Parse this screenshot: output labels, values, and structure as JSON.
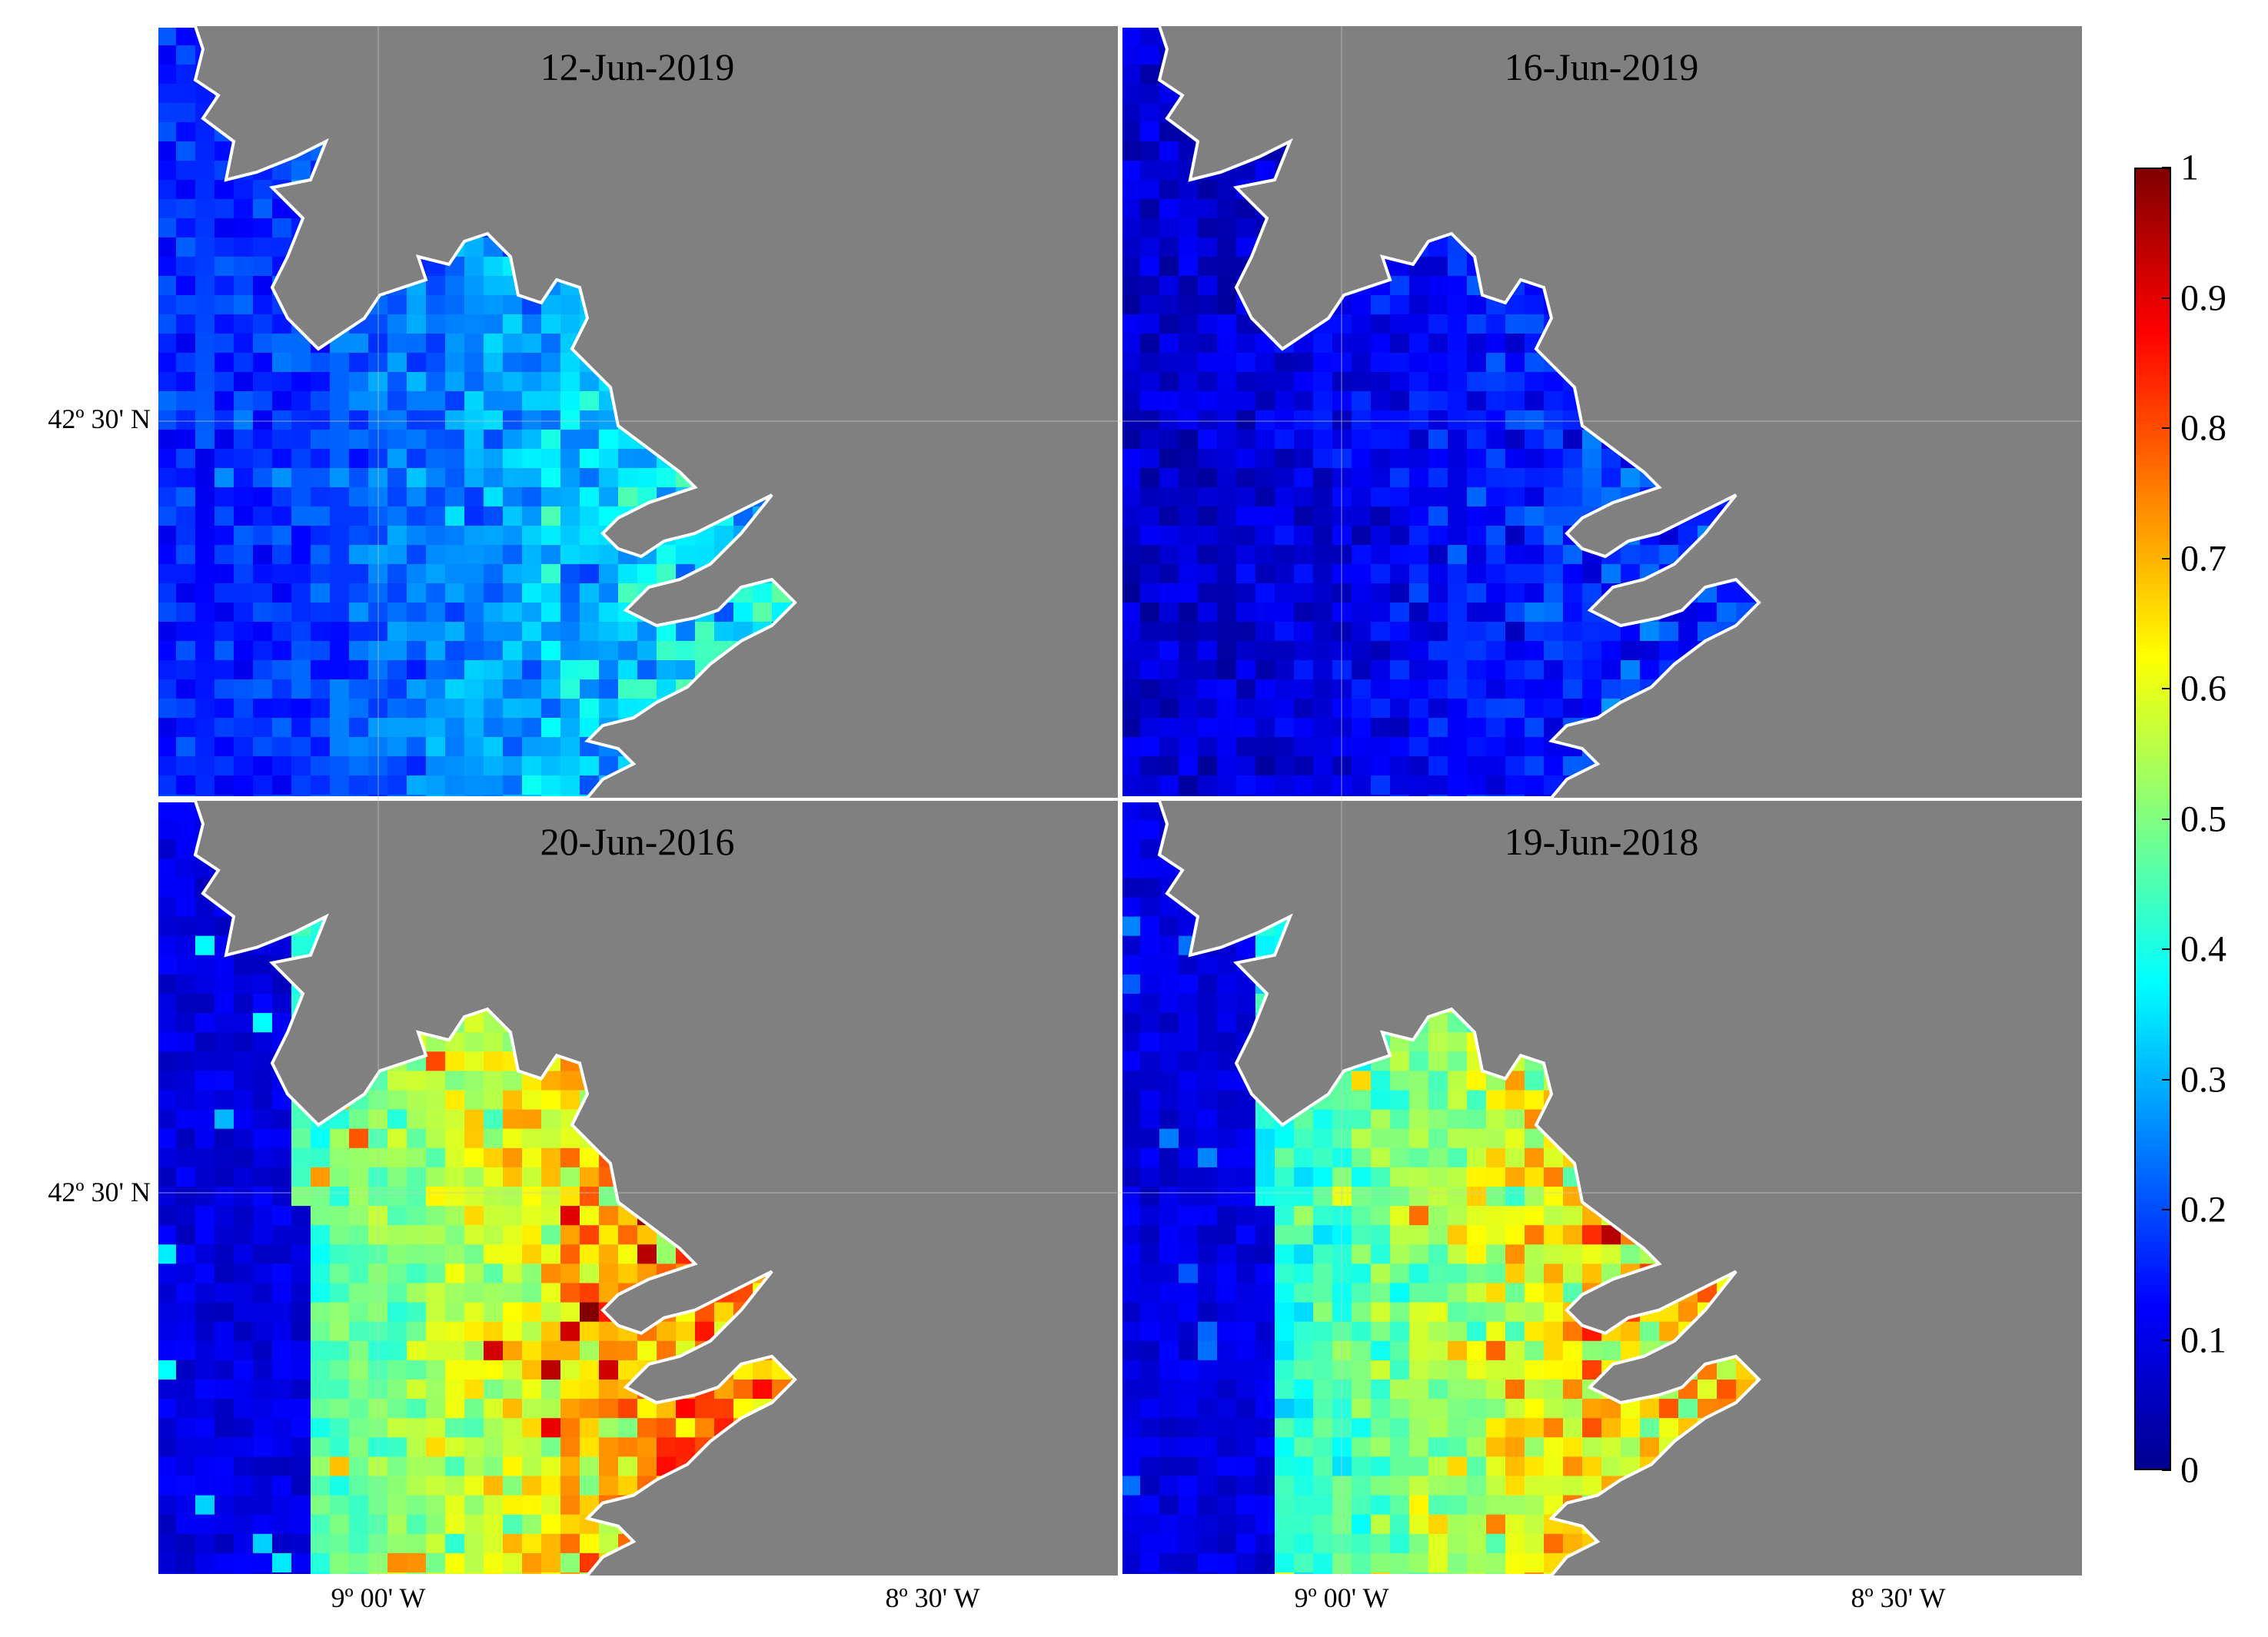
{
  "panels": [
    {
      "title": "12-Jun-2019"
    },
    {
      "title": "16-Jun-2019"
    },
    {
      "title": "20-Jun-2016"
    },
    {
      "title": "19-Jun-2018"
    }
  ],
  "axes": {
    "lat_labels": [
      "42º 30' N",
      "42º 30' N"
    ],
    "lon_labels": [
      "9º 00' W",
      "8º 30' W",
      "9º 00' W",
      "8º 30' W"
    ]
  },
  "colorbar": {
    "min": 0,
    "max": 1,
    "ticks": [
      "1",
      "0.9",
      "0.8",
      "0.7",
      "0.6",
      "0.5",
      "0.4",
      "0.3",
      "0.2",
      "0.1",
      "0"
    ],
    "colors": [
      "#00008f",
      "#0000ff",
      "#0080ff",
      "#00ffff",
      "#80ff80",
      "#ffff00",
      "#ff8000",
      "#ff0000",
      "#800000"
    ]
  },
  "colors": {
    "land": "#808080",
    "no_data": "#ffffff"
  }
}
